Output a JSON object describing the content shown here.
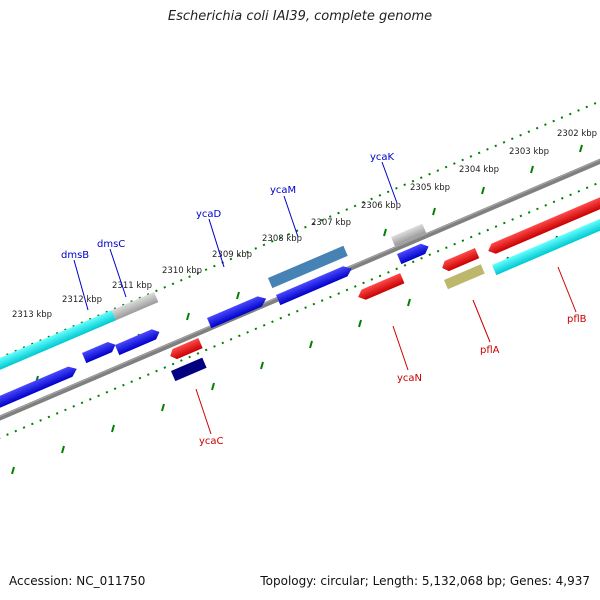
{
  "title": "Escherichia coli IAI39, complete genome",
  "footer": {
    "accession": "Accession: NC_011750",
    "summary": "Topology: circular; Length: 5,132,068 bp; Genes: 4,937"
  },
  "ruler_ticks_top": [
    "2302 kbp",
    "2303 kbp",
    "2304 kbp",
    "2305 kbp",
    "2306 kbp",
    "2307 kbp",
    "2308 kbp",
    "2309 kbp",
    "2310 kbp",
    "2311 kbp",
    "2312 kbp",
    "2313 kbp"
  ],
  "gene_labels": {
    "top": [
      "ycaK",
      "ycaM",
      "ycaD",
      "dmsC",
      "dmsB"
    ],
    "bottom": [
      "pflB",
      "pflA",
      "ycaN",
      "ycaC"
    ]
  },
  "colors": {
    "forward": "#0000ee",
    "reverse": "#ee0000",
    "highlight": "#00e5ee",
    "grey": "#b4b4b4",
    "steel": "#4682b4",
    "navy": "#000080",
    "khaki": "#bdb76b",
    "backbone": "#808080",
    "ruler": "#008000",
    "label_top": "#0000cc",
    "label_bottom": "#cc0000"
  }
}
